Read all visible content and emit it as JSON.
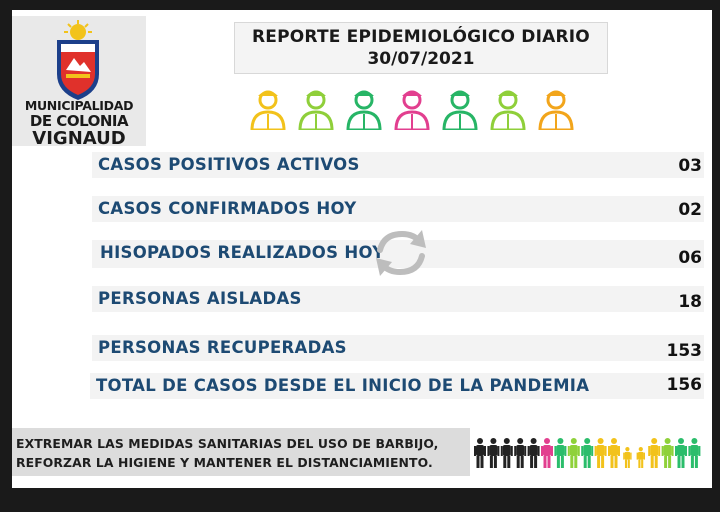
{
  "logo": {
    "line1": "MUNICIPALIDAD",
    "line2": "DE COLONIA",
    "line3": "VIGNAUD",
    "shield_colors": [
      "#1c3f8a",
      "#e0312b",
      "#f2c31b"
    ]
  },
  "header": {
    "title": "REPORTE EPIDEMIOLÓGICO DIARIO",
    "date": "30/07/2021"
  },
  "icons": [
    {
      "name": "worker-icon",
      "color": "#f2c21b"
    },
    {
      "name": "doctor-icon",
      "color": "#8fcf3a"
    },
    {
      "name": "firefighter-icon",
      "color": "#27b566"
    },
    {
      "name": "nurse-icon",
      "color": "#e23f8f"
    },
    {
      "name": "health-worker-icon",
      "color": "#27b566"
    },
    {
      "name": "chef-icon",
      "color": "#8fcf3a"
    },
    {
      "name": "builder-icon",
      "color": "#f2a51b"
    }
  ],
  "rows": [
    {
      "label": "CASOS POSITIVOS ACTIVOS",
      "value": "03"
    },
    {
      "label": "CASOS CONFIRMADOS HOY",
      "value": "02"
    },
    {
      "label": "HISOPADOS REALIZADOS HOY",
      "value": "06"
    },
    {
      "label": "PERSONAS AISLADAS",
      "value": "18"
    },
    {
      "label": "PERSONAS RECUPERADAS",
      "value": "153"
    },
    {
      "label": "TOTAL DE CASOS DESDE EL INICIO DE LA PANDEMIA",
      "value": "156"
    }
  ],
  "footer": {
    "line1": "EXTREMAR LAS MEDIDAS SANITARIAS DEL USO DE BARBIJO,",
    "line2": "REFORZAR LA HIGIENE Y MANTENER EL DISTANCIAMIENTO."
  },
  "people_colors": [
    "#222222",
    "#222222",
    "#222222",
    "#222222",
    "#222222",
    "#e23f8f",
    "#2bbd6b",
    "#8fd13a",
    "#2bbd6b",
    "#f2c21b",
    "#f2c21b",
    "#f2c21b",
    "#f2c21b",
    "#f2c21b",
    "#8fd13a",
    "#2bbd6b",
    "#2bbd6b"
  ],
  "accent": "#1d4a73"
}
